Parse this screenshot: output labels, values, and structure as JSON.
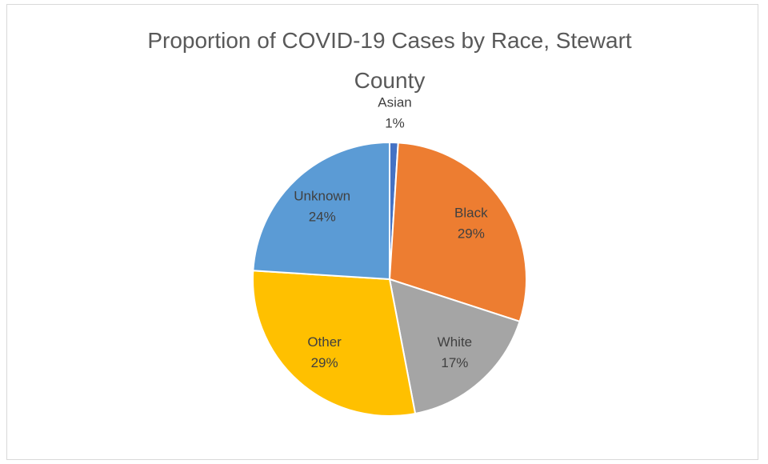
{
  "chart_data": {
    "type": "pie",
    "title": "Proportion of COVID-19 Cases by Race, Stewart County",
    "categories": [
      "Asian",
      "Black",
      "White",
      "Other",
      "Unknown"
    ],
    "values": [
      1,
      29,
      17,
      29,
      24
    ],
    "value_labels": [
      "1%",
      "29%",
      "17%",
      "29%",
      "24%"
    ],
    "colors": [
      "#4472c4",
      "#ed7d31",
      "#a5a5a5",
      "#ffc000",
      "#5b9bd5"
    ]
  }
}
